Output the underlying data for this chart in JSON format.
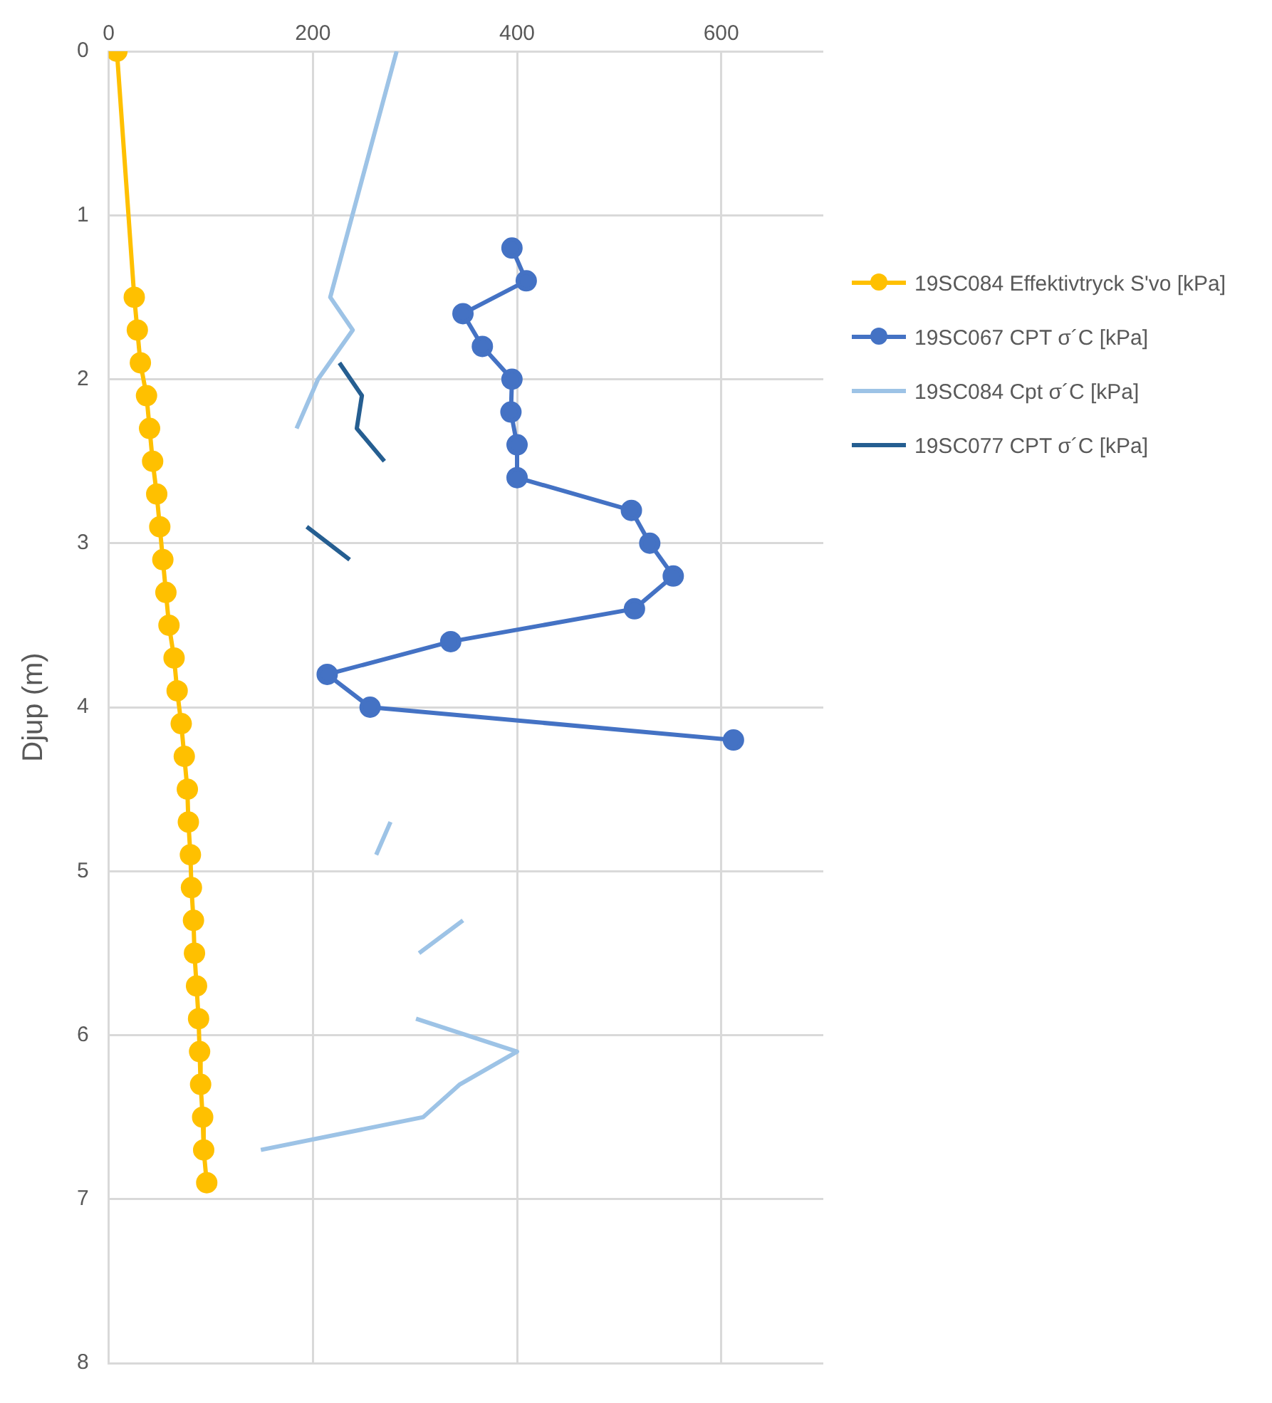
{
  "chart_data": {
    "type": "line",
    "ylabel": "Djup (m)",
    "xlim": [
      0,
      700
    ],
    "xticks": [
      0,
      200,
      400,
      600
    ],
    "ylim": [
      8,
      0
    ],
    "yticks": [
      0,
      1,
      2,
      3,
      4,
      5,
      6,
      7,
      8
    ],
    "grid": true,
    "legend": "right",
    "series": [
      {
        "name": "19SC084 Effektivtryck S'vo [kPa]",
        "color": "#ffc000",
        "marker": "circle",
        "x": [
          8,
          25,
          28,
          31,
          37,
          40,
          43,
          47,
          50,
          53,
          56,
          59,
          64,
          67,
          71,
          74,
          77,
          78,
          80,
          81,
          83,
          84,
          86,
          88,
          89,
          90,
          92,
          93,
          96
        ],
        "values": [
          0,
          1.5,
          1.7,
          1.9,
          2.1,
          2.3,
          2.5,
          2.7,
          2.9,
          3.1,
          3.3,
          3.5,
          3.7,
          3.9,
          4.1,
          4.3,
          4.5,
          4.7,
          4.9,
          5.1,
          5.3,
          5.5,
          5.7,
          5.9,
          6.1,
          6.3,
          6.5,
          6.7,
          6.9
        ]
      },
      {
        "name": "19SC067 CPT  σ´C [kPa]",
        "color": "#4472c4",
        "marker": "circle",
        "x": [
          395,
          409,
          347,
          366,
          395,
          394,
          400,
          400,
          512,
          530,
          553,
          515,
          335,
          214,
          256,
          612
        ],
        "values": [
          1.2,
          1.4,
          1.6,
          1.8,
          2.0,
          2.2,
          2.4,
          2.6,
          2.8,
          3.0,
          3.2,
          3.4,
          3.6,
          3.8,
          4.0,
          4.2
        ]
      },
      {
        "name": "19SC084 Cpt  σ´C [kPa]",
        "color": "#9dc3e6",
        "marker": "none",
        "x": [
          282,
          217,
          239,
          205,
          184,
          null,
          276,
          262,
          null,
          347,
          304,
          null,
          301,
          400,
          344,
          308,
          149
        ],
        "values": [
          0,
          1.5,
          1.7,
          2.0,
          2.3,
          null,
          4.7,
          4.9,
          null,
          5.3,
          5.5,
          null,
          5.9,
          6.1,
          6.3,
          6.5,
          6.7
        ]
      },
      {
        "name": "19SC077 CPT  σ´C [kPa]",
        "color": "#255e91",
        "marker": "none",
        "x": [
          226,
          248,
          243,
          270,
          null,
          194,
          236
        ],
        "values": [
          1.9,
          2.1,
          2.3,
          2.5,
          null,
          2.9,
          3.1
        ]
      }
    ]
  }
}
